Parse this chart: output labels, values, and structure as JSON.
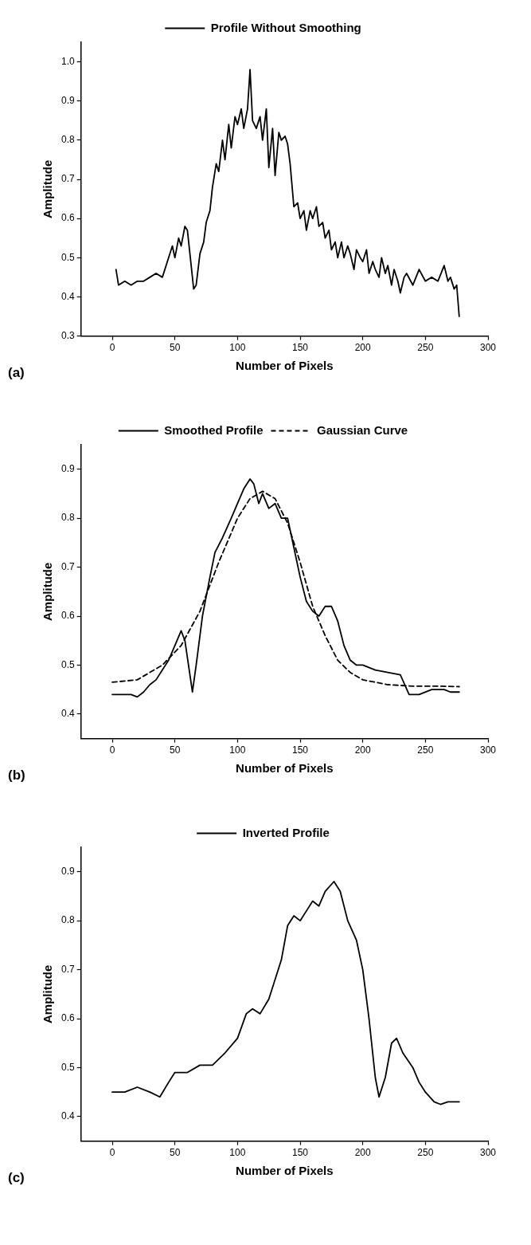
{
  "chart_data": [
    {
      "type": "line",
      "xlabel": "Number of Pixels",
      "ylabel": "Amplitude",
      "annotations": [
        "(a)"
      ],
      "xlim": [
        -25,
        300
      ],
      "xticks": [
        0,
        50,
        100,
        150,
        200,
        250,
        300
      ],
      "ylim": [
        0.3,
        1.05
      ],
      "yticks": [
        0.3,
        0.4,
        0.5,
        0.6,
        0.7,
        0.8,
        0.9,
        {
          "value": 1.0,
          "label": "1.0"
        }
      ],
      "grid": false,
      "legend": "top",
      "marker": "none",
      "series": [
        {
          "name": "Profile Without Smoothing",
          "color": "#000000",
          "line_style": "solid",
          "x": [
            3,
            5,
            10,
            15,
            20,
            25,
            30,
            35,
            40,
            45,
            48,
            50,
            53,
            55,
            58,
            60,
            62,
            65,
            67,
            70,
            73,
            75,
            78,
            80,
            83,
            85,
            88,
            90,
            93,
            95,
            98,
            100,
            103,
            105,
            108,
            110,
            112,
            115,
            118,
            120,
            123,
            125,
            128,
            130,
            133,
            135,
            138,
            140,
            142,
            145,
            148,
            150,
            153,
            155,
            158,
            160,
            163,
            165,
            168,
            170,
            173,
            175,
            178,
            180,
            183,
            185,
            188,
            190,
            193,
            195,
            198,
            200,
            203,
            205,
            208,
            210,
            213,
            215,
            218,
            220,
            223,
            225,
            228,
            230,
            233,
            235,
            240,
            245,
            250,
            255,
            260,
            265,
            268,
            270,
            273,
            275,
            277
          ],
          "values": [
            0.47,
            0.43,
            0.44,
            0.43,
            0.44,
            0.44,
            0.45,
            0.46,
            0.45,
            0.5,
            0.53,
            0.5,
            0.55,
            0.53,
            0.58,
            0.57,
            0.51,
            0.42,
            0.43,
            0.51,
            0.54,
            0.59,
            0.62,
            0.68,
            0.74,
            0.72,
            0.8,
            0.75,
            0.84,
            0.78,
            0.86,
            0.84,
            0.88,
            0.83,
            0.88,
            0.98,
            0.85,
            0.83,
            0.86,
            0.8,
            0.88,
            0.73,
            0.83,
            0.71,
            0.82,
            0.8,
            0.81,
            0.79,
            0.74,
            0.63,
            0.64,
            0.6,
            0.62,
            0.57,
            0.62,
            0.6,
            0.63,
            0.58,
            0.59,
            0.55,
            0.57,
            0.52,
            0.54,
            0.5,
            0.54,
            0.5,
            0.53,
            0.51,
            0.47,
            0.52,
            0.5,
            0.49,
            0.52,
            0.46,
            0.49,
            0.47,
            0.45,
            0.5,
            0.46,
            0.48,
            0.43,
            0.47,
            0.44,
            0.41,
            0.45,
            0.46,
            0.43,
            0.47,
            0.44,
            0.45,
            0.44,
            0.48,
            0.44,
            0.45,
            0.42,
            0.43,
            0.35
          ]
        }
      ]
    },
    {
      "type": "line",
      "xlabel": "Number of Pixels",
      "ylabel": "Amplitude",
      "annotations": [
        "(b)"
      ],
      "xlim": [
        -25,
        300
      ],
      "xticks": [
        0,
        50,
        100,
        150,
        200,
        250,
        300
      ],
      "ylim": [
        0.35,
        0.95
      ],
      "yticks": [
        0.4,
        0.5,
        0.6,
        0.7,
        0.8,
        0.9
      ],
      "grid": false,
      "legend": "top",
      "marker": "none",
      "series": [
        {
          "name": "Smoothed Profile",
          "color": "#000000",
          "line_style": "solid",
          "x": [
            0,
            15,
            20,
            25,
            30,
            35,
            40,
            45,
            50,
            55,
            58,
            62,
            64,
            67,
            72,
            78,
            82,
            88,
            95,
            100,
            105,
            110,
            113,
            117,
            120,
            125,
            130,
            135,
            140,
            145,
            150,
            155,
            160,
            165,
            170,
            175,
            180,
            185,
            190,
            195,
            200,
            210,
            220,
            230,
            237,
            245,
            255,
            265,
            270,
            277
          ],
          "values": [
            0.44,
            0.44,
            0.435,
            0.445,
            0.46,
            0.47,
            0.49,
            0.51,
            0.54,
            0.57,
            0.55,
            0.48,
            0.445,
            0.5,
            0.6,
            0.68,
            0.73,
            0.76,
            0.8,
            0.83,
            0.86,
            0.88,
            0.87,
            0.83,
            0.85,
            0.82,
            0.83,
            0.8,
            0.8,
            0.74,
            0.68,
            0.63,
            0.61,
            0.6,
            0.62,
            0.62,
            0.59,
            0.54,
            0.51,
            0.5,
            0.5,
            0.49,
            0.485,
            0.48,
            0.44,
            0.44,
            0.45,
            0.45,
            0.445,
            0.445
          ]
        },
        {
          "name": "Gaussian Curve",
          "color": "#000000",
          "line_style": "dashed",
          "x": [
            0,
            20,
            40,
            55,
            70,
            85,
            100,
            110,
            120,
            130,
            140,
            150,
            160,
            170,
            180,
            190,
            200,
            220,
            240,
            260,
            277
          ],
          "values": [
            0.465,
            0.47,
            0.5,
            0.54,
            0.61,
            0.71,
            0.8,
            0.84,
            0.855,
            0.84,
            0.79,
            0.71,
            0.62,
            0.56,
            0.51,
            0.485,
            0.47,
            0.46,
            0.457,
            0.457,
            0.456
          ]
        }
      ]
    },
    {
      "type": "line",
      "xlabel": "Number of Pixels",
      "ylabel": "Amplitude",
      "annotations": [
        "(c)"
      ],
      "xlim": [
        -25,
        300
      ],
      "xticks": [
        0,
        50,
        100,
        150,
        200,
        250,
        300
      ],
      "ylim": [
        0.35,
        0.95
      ],
      "yticks": [
        0.4,
        0.5,
        0.6,
        0.7,
        0.8,
        0.9
      ],
      "grid": false,
      "legend": "top",
      "marker": "none",
      "series": [
        {
          "name": "Inverted Profile",
          "color": "#000000",
          "line_style": "solid",
          "x": [
            0,
            10,
            20,
            30,
            38,
            45,
            50,
            60,
            70,
            80,
            90,
            100,
            107,
            112,
            118,
            125,
            135,
            140,
            145,
            150,
            155,
            160,
            165,
            170,
            177,
            182,
            188,
            195,
            200,
            205,
            210,
            213,
            218,
            223,
            227,
            232,
            240,
            245,
            250,
            257,
            262,
            268,
            277
          ],
          "values": [
            0.45,
            0.45,
            0.46,
            0.45,
            0.44,
            0.47,
            0.49,
            0.49,
            0.505,
            0.505,
            0.53,
            0.56,
            0.61,
            0.62,
            0.61,
            0.64,
            0.72,
            0.79,
            0.81,
            0.8,
            0.82,
            0.84,
            0.83,
            0.86,
            0.88,
            0.86,
            0.8,
            0.76,
            0.7,
            0.6,
            0.48,
            0.44,
            0.48,
            0.55,
            0.56,
            0.53,
            0.5,
            0.47,
            0.45,
            0.43,
            0.425,
            0.43,
            0.43
          ]
        }
      ]
    }
  ]
}
